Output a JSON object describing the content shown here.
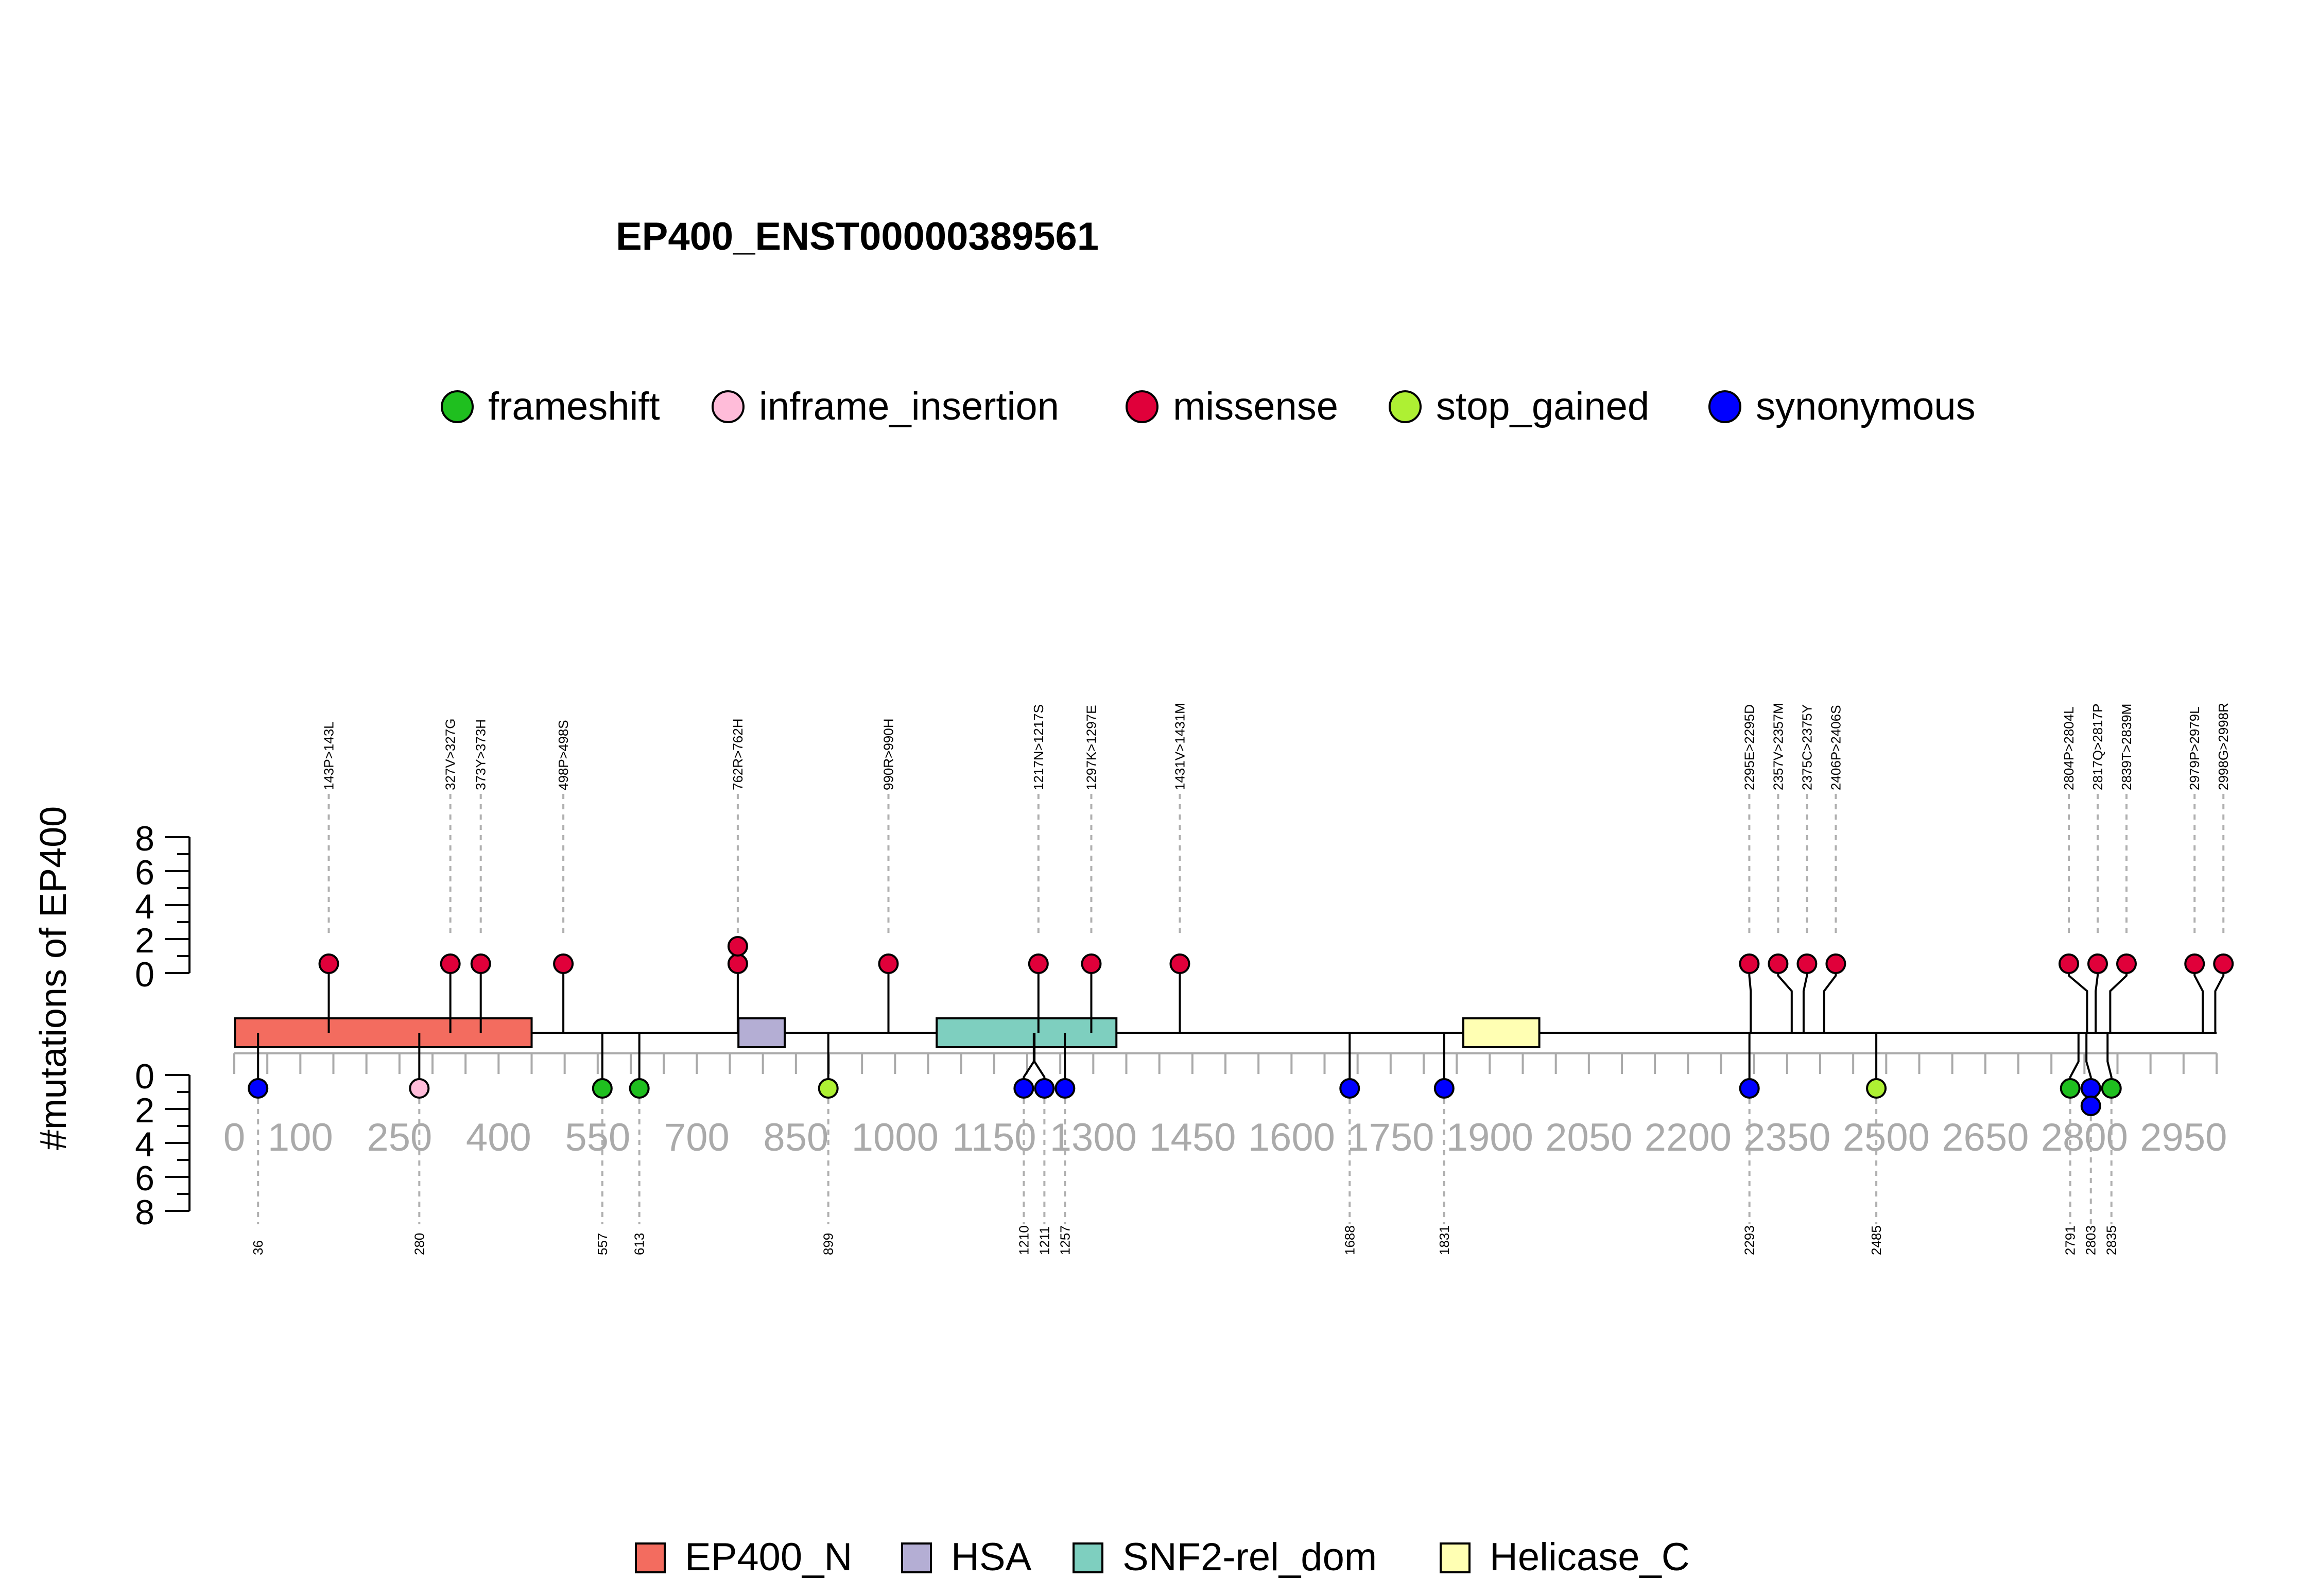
{
  "chart_data": {
    "type": "lollipop",
    "title": "EP400_ENST00000389561",
    "ylabel": "#mutations of EP400",
    "xlim": [
      0,
      3000
    ],
    "x_ticks": [
      0,
      100,
      250,
      400,
      550,
      700,
      850,
      1000,
      1150,
      1300,
      1450,
      1600,
      1750,
      1900,
      2050,
      2200,
      2350,
      2500,
      2650,
      2800,
      2950
    ],
    "y_ticks_top": [
      0,
      2,
      4,
      6,
      8
    ],
    "y_ticks_bottom": [
      0,
      2,
      4,
      6,
      8
    ],
    "ylim": [
      0,
      8
    ],
    "mutation_legend": [
      {
        "name": "frameshift",
        "color": "#1fbf1f"
      },
      {
        "name": "inframe_insertion",
        "color": "#ffbcd9"
      },
      {
        "name": "missense",
        "color": "#e0003a"
      },
      {
        "name": "stop_gained",
        "color": "#aef033"
      },
      {
        "name": "synonymous",
        "color": "#0000ff"
      }
    ],
    "domain_legend": [
      {
        "name": "EP400_N",
        "color": "#f36c5f"
      },
      {
        "name": "HSA",
        "color": "#b4aed4"
      },
      {
        "name": "SNF2-rel_dom",
        "color": "#7ecfbf"
      },
      {
        "name": "Helicase_C",
        "color": "#ffffb3"
      }
    ],
    "domains": [
      {
        "name": "EP400_N",
        "start": 1,
        "end": 450
      },
      {
        "name": "HSA",
        "start": 763,
        "end": 833
      },
      {
        "name": "SNF2-rel_dom",
        "start": 1063,
        "end": 1335
      },
      {
        "name": "Helicase_C",
        "start": 1860,
        "end": 1975
      }
    ],
    "top_mutations": [
      {
        "label": "143P>143L",
        "pos": 143,
        "count": 1,
        "type": "missense"
      },
      {
        "label": "327V>327G",
        "pos": 327,
        "count": 1,
        "type": "missense"
      },
      {
        "label": "373Y>373H",
        "pos": 373,
        "count": 1,
        "type": "missense"
      },
      {
        "label": "498P>498S",
        "pos": 498,
        "count": 1,
        "type": "missense"
      },
      {
        "label": "762R>762H",
        "pos": 762,
        "count": 2,
        "type": "missense"
      },
      {
        "label": "990R>990H",
        "pos": 990,
        "count": 1,
        "type": "missense"
      },
      {
        "label": "1217N>1217S",
        "pos": 1217,
        "count": 1,
        "type": "missense"
      },
      {
        "label": "1297K>1297E",
        "pos": 1297,
        "count": 1,
        "type": "missense"
      },
      {
        "label": "1431V>1431M",
        "pos": 1431,
        "count": 1,
        "type": "missense"
      },
      {
        "label": "2295E>2295D",
        "pos": 2295,
        "count": 1,
        "type": "missense"
      },
      {
        "label": "2357V>2357M",
        "pos": 2357,
        "count": 1,
        "type": "missense"
      },
      {
        "label": "2375C>2375Y",
        "pos": 2375,
        "count": 1,
        "type": "missense"
      },
      {
        "label": "2406P>2406S",
        "pos": 2406,
        "count": 1,
        "type": "missense"
      },
      {
        "label": "2804P>2804L",
        "pos": 2804,
        "count": 1,
        "type": "missense"
      },
      {
        "label": "2817Q>2817P",
        "pos": 2817,
        "count": 1,
        "type": "missense"
      },
      {
        "label": "2839T>2839M",
        "pos": 2839,
        "count": 1,
        "type": "missense"
      },
      {
        "label": "2979P>2979L",
        "pos": 2979,
        "count": 1,
        "type": "missense"
      },
      {
        "label": "2998G>2998R",
        "pos": 2998,
        "count": 1,
        "type": "missense"
      }
    ],
    "bottom_mutations": [
      {
        "label": "36",
        "pos": 36,
        "count": 1,
        "type": "synonymous"
      },
      {
        "label": "280",
        "pos": 280,
        "count": 1,
        "type": "inframe_insertion"
      },
      {
        "label": "557",
        "pos": 557,
        "count": 1,
        "type": "frameshift"
      },
      {
        "label": "613",
        "pos": 613,
        "count": 1,
        "type": "frameshift"
      },
      {
        "label": "899",
        "pos": 899,
        "count": 1,
        "type": "stop_gained"
      },
      {
        "label": "1210",
        "pos": 1210,
        "count": 1,
        "type": "synonymous"
      },
      {
        "label": "1211",
        "pos": 1211,
        "count": 1,
        "type": "synonymous"
      },
      {
        "label": "1257",
        "pos": 1257,
        "count": 1,
        "type": "synonymous"
      },
      {
        "label": "1688",
        "pos": 1688,
        "count": 1,
        "type": "synonymous"
      },
      {
        "label": "1831",
        "pos": 1831,
        "count": 1,
        "type": "synonymous"
      },
      {
        "label": "2293",
        "pos": 2293,
        "count": 1,
        "type": "synonymous"
      },
      {
        "label": "2485",
        "pos": 2485,
        "count": 1,
        "type": "stop_gained"
      },
      {
        "label": "2791",
        "pos": 2791,
        "count": 1,
        "type": "frameshift"
      },
      {
        "label": "2803",
        "pos": 2803,
        "count": 2,
        "type": "synonymous"
      },
      {
        "label": "2835",
        "pos": 2835,
        "count": 1,
        "type": "frameshift"
      }
    ]
  }
}
